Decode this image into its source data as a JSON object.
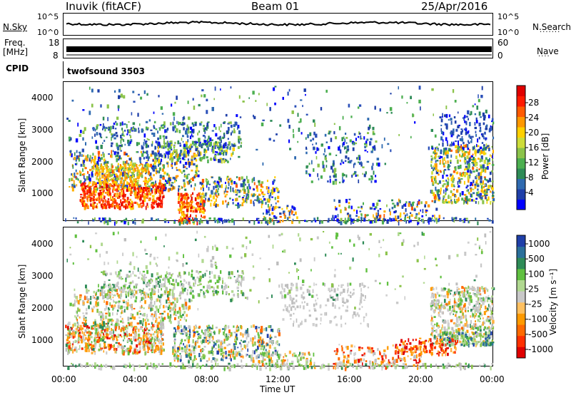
{
  "header": {
    "station": "Inuvik  (fitACF)",
    "beam": "Beam 01",
    "date": "25/Apr/2016"
  },
  "top_panels": {
    "nsky_label": "N.Sky",
    "nsearch_label": "N.Search",
    "nsky_ticks": [
      "10^5",
      "10^0"
    ],
    "nsky_right_ticks": [
      "10^5",
      "10^0"
    ],
    "freq_label": "Freq.",
    "freq_unit": "[MHz]",
    "freq_ticks": [
      "18",
      "8"
    ],
    "nave_label": "Nave",
    "nave_ticks": [
      "60",
      "0"
    ],
    "cpid_label": "CPID",
    "cpid_value": "twofsound 3503"
  },
  "chart_data": [
    {
      "type": "heatmap",
      "name": "power",
      "ylabel": "Slant Range [km]",
      "yticks": [
        "4000",
        "3000",
        "2000",
        "1000"
      ],
      "ylim": [
        180,
        4500
      ],
      "xlabel": "Time UT",
      "xticks": [
        "00:00",
        "04:00",
        "08:00",
        "12:00",
        "16:00",
        "20:00",
        "00:00"
      ],
      "colorbar": {
        "label": "Power [dB]",
        "ticks": [
          "28",
          "24",
          "20",
          "16",
          "12",
          "8",
          "4"
        ],
        "colors": [
          "#0000ff",
          "#1f3fa8",
          "#2f6ab0",
          "#2e8b57",
          "#4caf50",
          "#8bc34a",
          "#cddc39",
          "#ffd000",
          "#ff9800",
          "#ff5a00",
          "#ff1a00",
          "#e00000"
        ]
      }
    },
    {
      "type": "heatmap",
      "name": "velocity",
      "ylabel": "Slant Range [km]",
      "yticks": [
        "4000",
        "3000",
        "2000",
        "1000"
      ],
      "ylim": [
        180,
        4500
      ],
      "xlabel": "Time UT",
      "xticks": [
        "00:00",
        "04:00",
        "08:00",
        "12:00",
        "16:00",
        "20:00",
        "00:00"
      ],
      "colorbar": {
        "label": "Velocity [m s⁻¹]",
        "ticks": [
          "1000",
          "500",
          "100",
          "25",
          "-25",
          "-100",
          "-500",
          "-1000"
        ],
        "colors": [
          "#e00000",
          "#ff3000",
          "#ff6a00",
          "#ff9a00",
          "#ffc060",
          "#c8c8c8",
          "#b0d890",
          "#60c040",
          "#2e8b57",
          "#2a6f9a",
          "#1f3fa8"
        ]
      }
    }
  ],
  "x_axis_title": "Time UT"
}
